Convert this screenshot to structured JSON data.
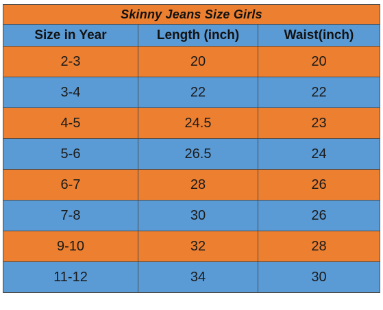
{
  "table": {
    "title": "Skinny Jeans Size Girls",
    "headers": [
      "Size in Year",
      "Length (inch)",
      "Waist(inch)"
    ],
    "rows": [
      [
        "2-3",
        "20",
        "20"
      ],
      [
        "3-4",
        "22",
        "22"
      ],
      [
        "4-5",
        "24.5",
        "23"
      ],
      [
        "5-6",
        "26.5",
        "24"
      ],
      [
        "6-7",
        "28",
        "26"
      ],
      [
        "7-8",
        "30",
        "26"
      ],
      [
        "9-10",
        "32",
        "28"
      ],
      [
        "11-12",
        "34",
        "30"
      ]
    ]
  },
  "colors": {
    "orange_row": "#ec7f30",
    "blue_row": "#5b9bd5",
    "border": "#4a4a4a"
  }
}
